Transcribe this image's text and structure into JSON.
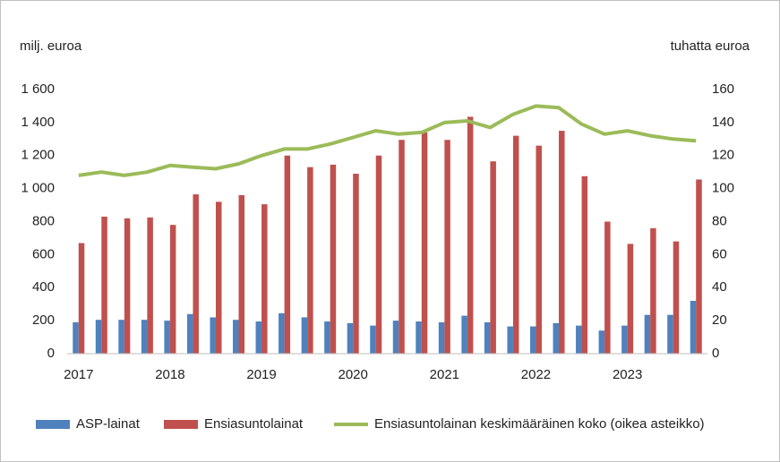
{
  "chart_data": {
    "type": "bar",
    "y_label": "milj. euroa",
    "y2_label": "tuhatta euroa",
    "categories": [
      "2017",
      null,
      null,
      null,
      "2018",
      null,
      null,
      null,
      "2019",
      null,
      null,
      null,
      "2020",
      null,
      null,
      null,
      "2021",
      null,
      null,
      null,
      "2022",
      null,
      null,
      null,
      "2023",
      null,
      null,
      null
    ],
    "series": [
      {
        "name": "ASP-lainat",
        "color": "#4f81bd",
        "type": "bar",
        "values": [
          190,
          205,
          205,
          205,
          200,
          240,
          220,
          205,
          195,
          245,
          220,
          195,
          185,
          170,
          200,
          195,
          190,
          230,
          190,
          165,
          165,
          185,
          170,
          140,
          170,
          235,
          235,
          320
        ]
      },
      {
        "name": "Ensiasuntolainat",
        "color": "#c0504d",
        "type": "bar",
        "values": [
          670,
          830,
          820,
          825,
          780,
          965,
          920,
          960,
          905,
          1200,
          1130,
          1145,
          1090,
          1200,
          1295,
          1340,
          1295,
          1435,
          1165,
          1320,
          1260,
          1350,
          1075,
          800,
          665,
          760,
          680,
          1055
        ]
      },
      {
        "name": "Ensiasuntolainan keskimääräinen koko (oikea asteikko)",
        "color": "#9bbb59",
        "type": "line",
        "axis": "y2",
        "values": [
          108,
          110,
          108,
          110,
          114,
          113,
          112,
          115,
          120,
          124,
          124,
          127,
          131,
          135,
          133,
          134,
          140,
          141,
          137,
          145,
          150,
          149,
          139,
          133,
          135,
          132,
          130,
          129
        ]
      }
    ],
    "ylim": [
      0,
      1600
    ],
    "yticks": [
      0,
      200,
      400,
      600,
      800,
      {
        "value": 1000,
        "label": "1 000"
      },
      {
        "value": 1200,
        "label": "1 200"
      },
      {
        "value": 1400,
        "label": "1 400"
      },
      {
        "value": 1600,
        "label": "1 600"
      }
    ],
    "y2lim": [
      0,
      160
    ],
    "y2ticks": [
      0,
      20,
      40,
      60,
      80,
      100,
      120,
      140,
      160
    ],
    "grid": false,
    "legend": "bottom"
  }
}
